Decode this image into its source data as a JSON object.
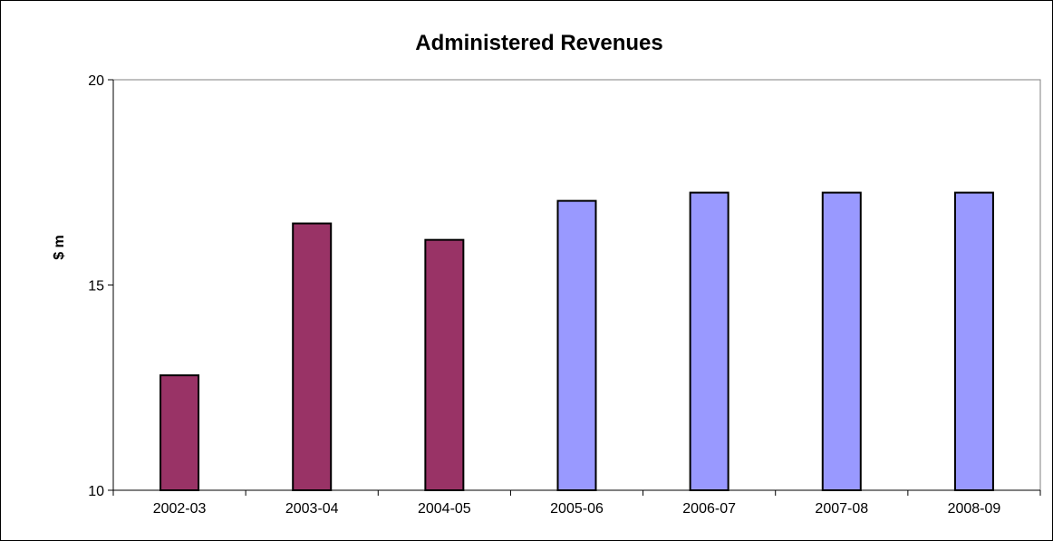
{
  "chart_data": {
    "type": "bar",
    "title": "Administered Revenues",
    "xlabel": "",
    "ylabel": "$ m",
    "categories": [
      "2002-03",
      "2003-04",
      "2004-05",
      "2005-06",
      "2006-07",
      "2007-08",
      "2008-09"
    ],
    "values": [
      12.8,
      16.5,
      16.1,
      17.05,
      17.25,
      17.25,
      17.25
    ],
    "bar_colors": [
      "#993366",
      "#993366",
      "#993366",
      "#9999FF",
      "#9999FF",
      "#9999FF",
      "#9999FF"
    ],
    "ylim": [
      10,
      20
    ],
    "yticks": [
      10,
      15,
      20
    ],
    "grid": false,
    "legend": "none"
  }
}
